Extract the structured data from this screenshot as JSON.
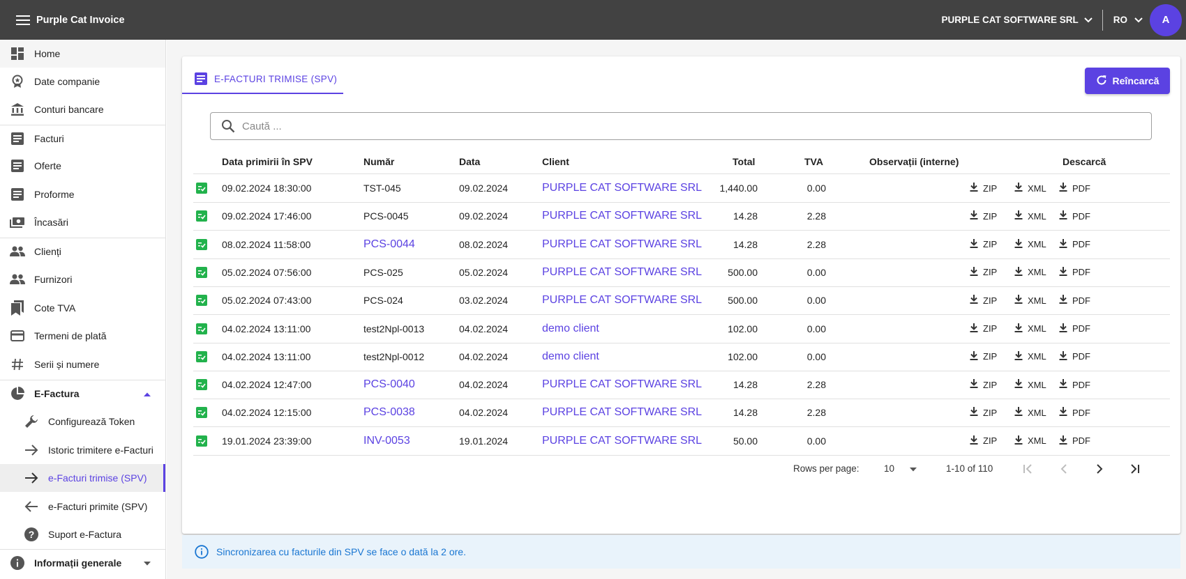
{
  "app": {
    "title": "Purple Cat Invoice"
  },
  "header": {
    "company": "PURPLE CAT SOFTWARE SRL",
    "language": "RO",
    "avatar_initial": "A"
  },
  "colors": {
    "accent": "#5b42e2",
    "topbar": "#424242",
    "success": "#22b24c",
    "info": "#1976d2"
  },
  "sidebar": {
    "items": [
      {
        "label": "Home",
        "icon": "dashboard-icon"
      },
      {
        "label": "Date companie",
        "icon": "badge-icon"
      },
      {
        "label": "Conturi bancare",
        "icon": "bank-icon"
      },
      {
        "label": "Facturi",
        "icon": "document-icon"
      },
      {
        "label": "Oferte",
        "icon": "document-icon"
      },
      {
        "label": "Proforme",
        "icon": "document-icon"
      },
      {
        "label": "Încasări",
        "icon": "money-icon"
      },
      {
        "label": "Clienți",
        "icon": "people-icon"
      },
      {
        "label": "Furnizori",
        "icon": "people-icon"
      },
      {
        "label": "Cote TVA",
        "icon": "bookmarks-icon"
      },
      {
        "label": "Termeni de plată",
        "icon": "credit-card-icon"
      },
      {
        "label": "Serii și numere",
        "icon": "hash-icon"
      },
      {
        "label": "E-Factura",
        "icon": "pie-chart-icon"
      },
      {
        "label": "Configurează Token",
        "icon": "wrench-icon"
      },
      {
        "label": "Istoric trimitere e-Facturi",
        "icon": "arrow-right-icon"
      },
      {
        "label": "e-Facturi trimise (SPV)",
        "icon": "arrow-right-icon"
      },
      {
        "label": "e-Facturi primite (SPV)",
        "icon": "arrow-left-icon"
      },
      {
        "label": "Suport e-Factura",
        "icon": "help-icon"
      },
      {
        "label": "Informații generale",
        "icon": "info-icon"
      }
    ]
  },
  "main": {
    "tab_label": "E-FACTURI TRIMISE (SPV)",
    "reload_label": "Reîncarcă",
    "search": {
      "placeholder": "Caută ...",
      "value": ""
    },
    "table": {
      "headers": {
        "received": "Data primirii în SPV",
        "number": "Număr",
        "date": "Data",
        "client": "Client",
        "total": "Total",
        "vat": "TVA",
        "notes": "Observații (interne)",
        "download": "Descarcă"
      },
      "download_labels": {
        "zip": "ZIP",
        "xml": "XML",
        "pdf": "PDF"
      },
      "rows": [
        {
          "received": "09.02.2024 18:30:00",
          "number": "TST-045",
          "number_link": false,
          "date": "09.02.2024",
          "client": "PURPLE CAT SOFTWARE SRL",
          "total": "1,440.00",
          "vat": "0.00",
          "notes": ""
        },
        {
          "received": "09.02.2024 17:46:00",
          "number": "PCS-0045",
          "number_link": false,
          "date": "09.02.2024",
          "client": "PURPLE CAT SOFTWARE SRL",
          "total": "14.28",
          "vat": "2.28",
          "notes": ""
        },
        {
          "received": "08.02.2024 11:58:00",
          "number": "PCS-0044",
          "number_link": true,
          "date": "08.02.2024",
          "client": "PURPLE CAT SOFTWARE SRL",
          "total": "14.28",
          "vat": "2.28",
          "notes": ""
        },
        {
          "received": "05.02.2024 07:56:00",
          "number": "PCS-025",
          "number_link": false,
          "date": "05.02.2024",
          "client": "PURPLE CAT SOFTWARE SRL",
          "total": "500.00",
          "vat": "0.00",
          "notes": ""
        },
        {
          "received": "05.02.2024 07:43:00",
          "number": "PCS-024",
          "number_link": false,
          "date": "03.02.2024",
          "client": "PURPLE CAT SOFTWARE SRL",
          "total": "500.00",
          "vat": "0.00",
          "notes": ""
        },
        {
          "received": "04.02.2024 13:11:00",
          "number": "test2Npl-0013",
          "number_link": false,
          "date": "04.02.2024",
          "client": "demo client",
          "total": "102.00",
          "vat": "0.00",
          "notes": ""
        },
        {
          "received": "04.02.2024 13:11:00",
          "number": "test2Npl-0012",
          "number_link": false,
          "date": "04.02.2024",
          "client": "demo client",
          "total": "102.00",
          "vat": "0.00",
          "notes": ""
        },
        {
          "received": "04.02.2024 12:47:00",
          "number": "PCS-0040",
          "number_link": true,
          "date": "04.02.2024",
          "client": "PURPLE CAT SOFTWARE SRL",
          "total": "14.28",
          "vat": "2.28",
          "notes": ""
        },
        {
          "received": "04.02.2024 12:15:00",
          "number": "PCS-0038",
          "number_link": true,
          "date": "04.02.2024",
          "client": "PURPLE CAT SOFTWARE SRL",
          "total": "14.28",
          "vat": "2.28",
          "notes": ""
        },
        {
          "received": "19.01.2024 23:39:00",
          "number": "INV-0053",
          "number_link": true,
          "date": "19.01.2024",
          "client": "PURPLE CAT SOFTWARE SRL",
          "total": "50.00",
          "vat": "0.00",
          "notes": ""
        }
      ]
    },
    "pagination": {
      "rows_per_page_label": "Rows per page:",
      "rows_per_page": "10",
      "range": "1-10 of 110"
    },
    "info_message": "Sincronizarea cu facturile din SPV se face o dată la 2 ore."
  }
}
